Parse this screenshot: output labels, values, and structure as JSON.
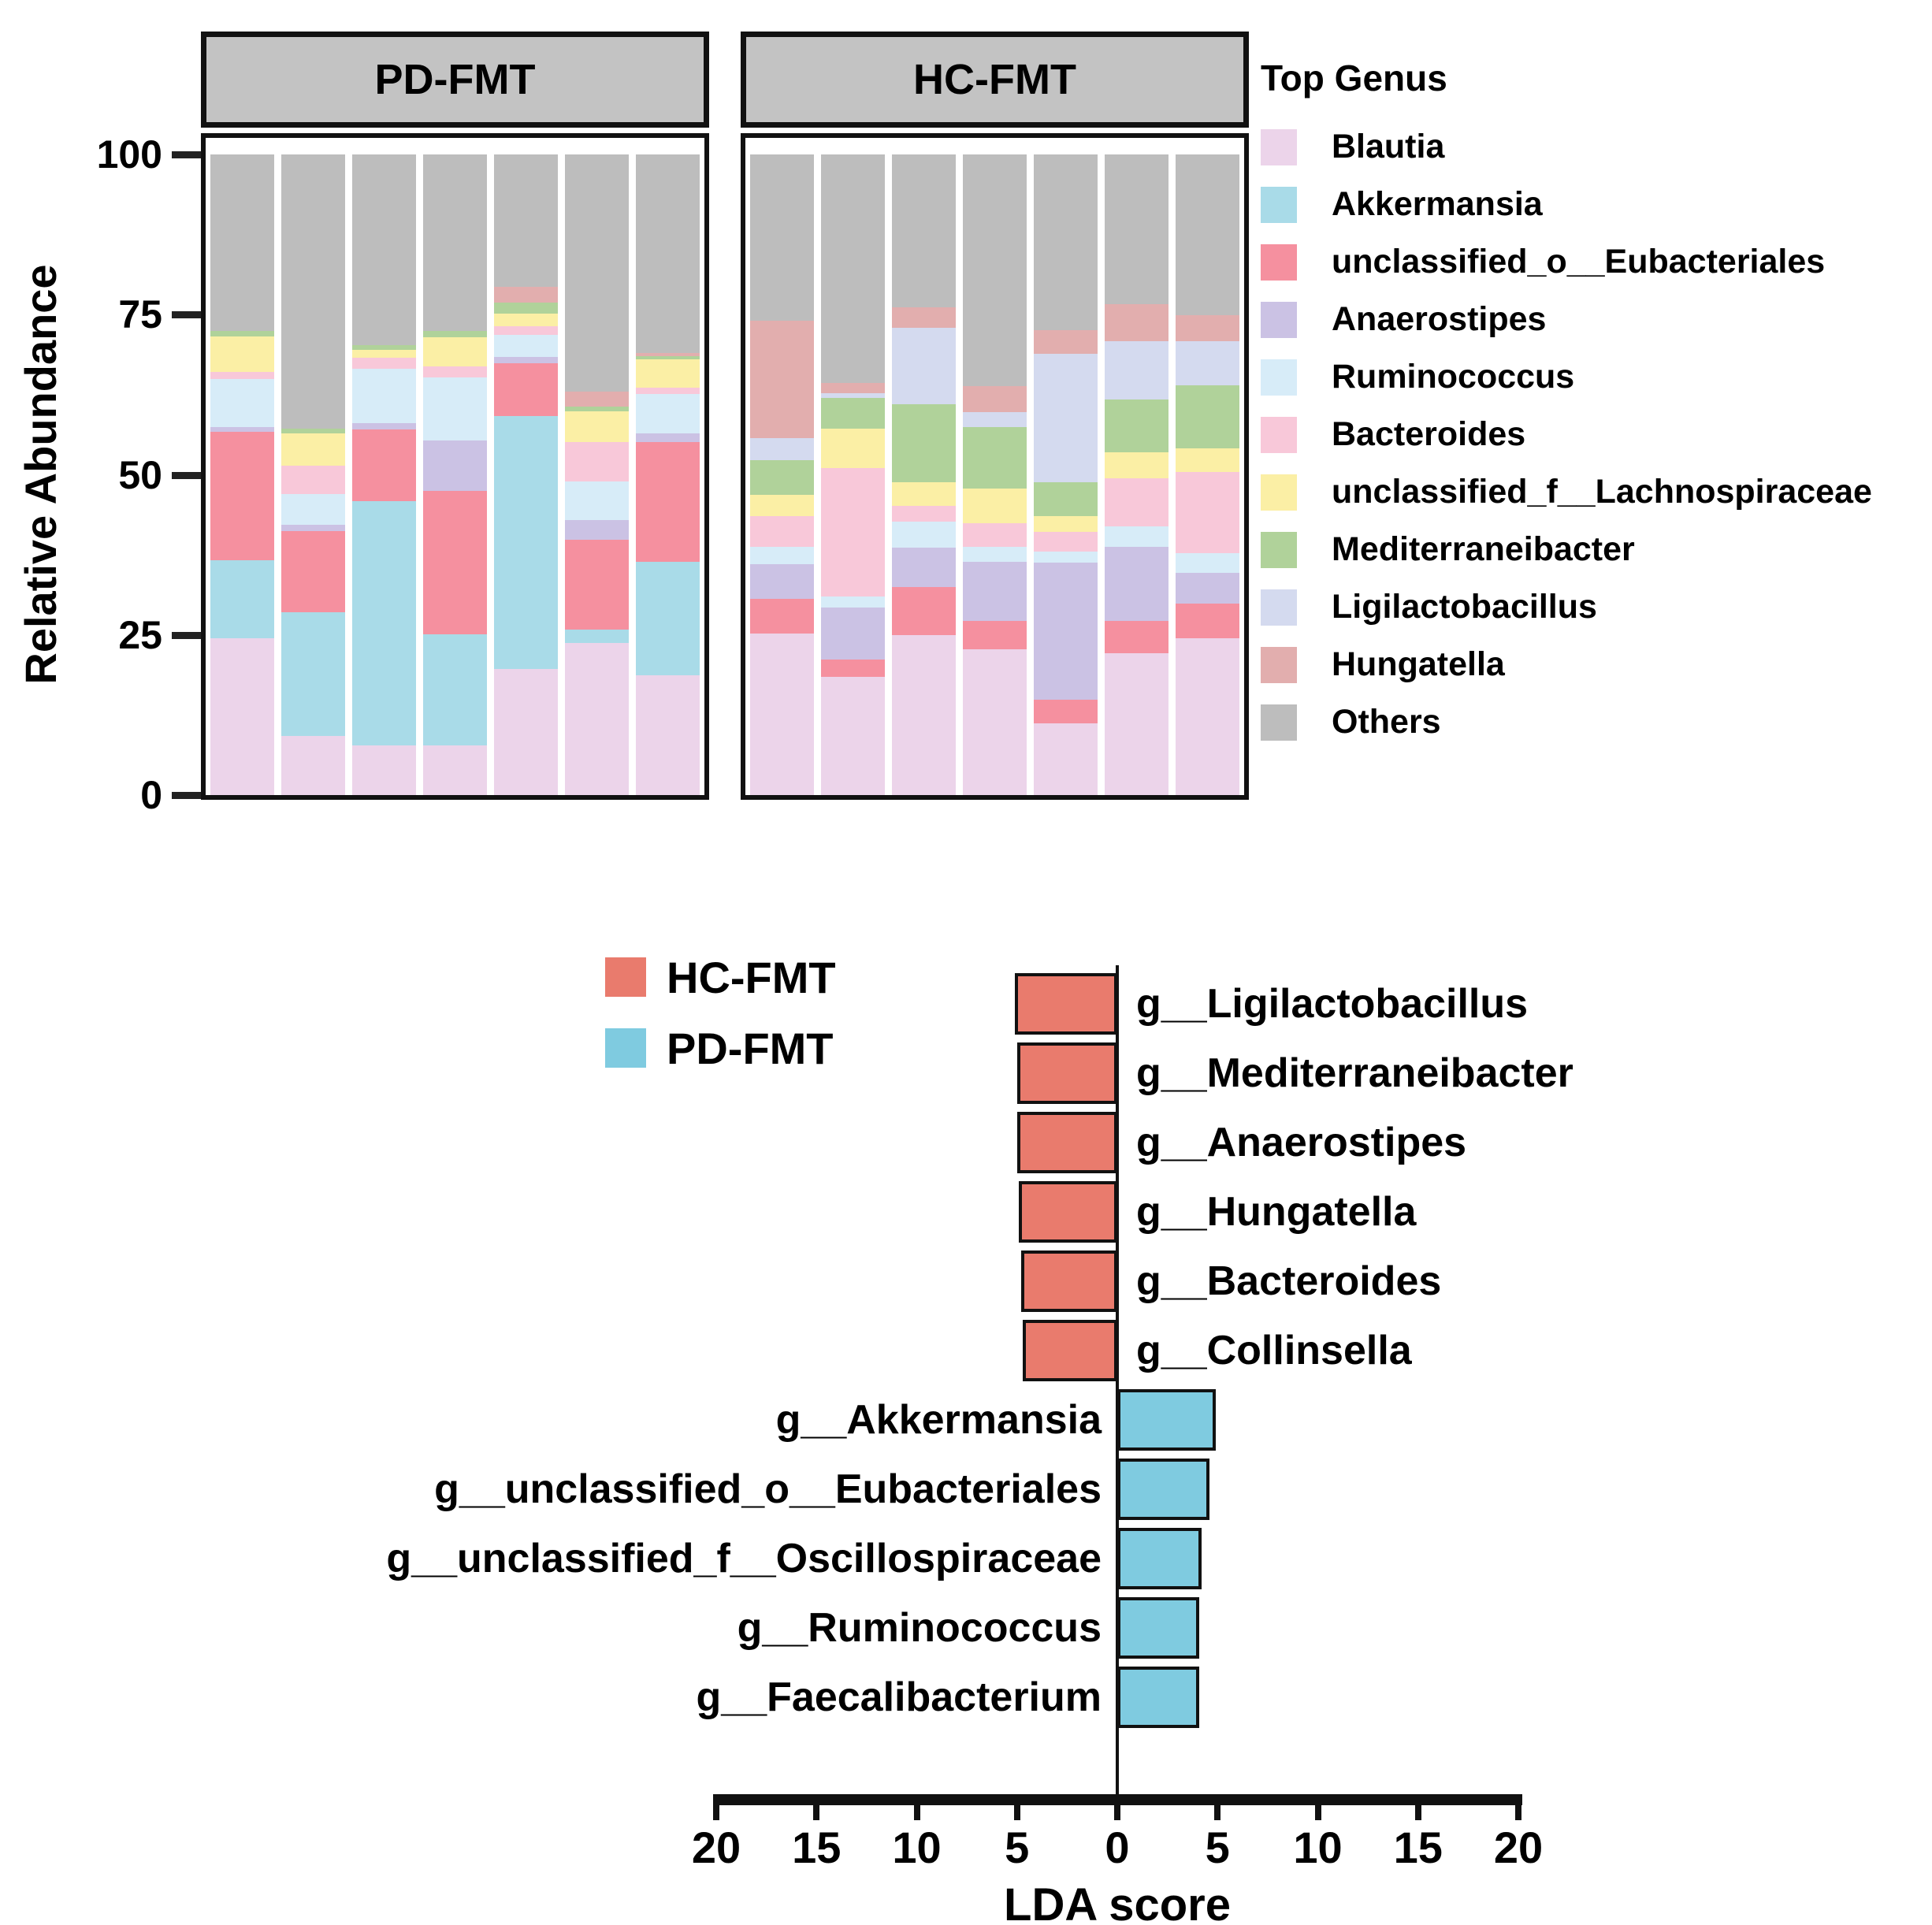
{
  "figure": {
    "y_axis_label": "Relative Abundance",
    "legend_title": "Top Genus",
    "lda_xlabel": "LDA score"
  },
  "chart_data": [
    {
      "type": "bar",
      "subtype": "stacked-percent",
      "ylabel": "Relative Abundance",
      "ylim": [
        0,
        100
      ],
      "yticks": [
        100,
        75,
        50,
        25,
        0
      ],
      "legend_title": "Top Genus",
      "legend_position": "right",
      "grid": false,
      "genera": [
        {
          "name": "Blautia",
          "color": "#ecd4ea"
        },
        {
          "name": "Akkermansia",
          "color": "#a9dbe8"
        },
        {
          "name": "unclassified_o__Eubacteriales",
          "color": "#f5909f"
        },
        {
          "name": "Anaerostipes",
          "color": "#cbc2e4"
        },
        {
          "name": "Ruminococcus",
          "color": "#d7ecf8"
        },
        {
          "name": "Bacteroides",
          "color": "#f8c8d9"
        },
        {
          "name": "unclassified_f__Lachnospiraceae",
          "color": "#fbefa5"
        },
        {
          "name": "Mediterraneibacter",
          "color": "#b0d29a"
        },
        {
          "name": "Ligilactobacillus",
          "color": "#d4daef"
        },
        {
          "name": "Hungatella",
          "color": "#e2aeae"
        },
        {
          "name": "Others",
          "color": "#bdbdbd"
        }
      ],
      "panels": [
        {
          "title": "PD-FMT",
          "bars": [
            [
              [
                "Blautia",
                24.5
              ],
              [
                "Akkermansia",
                12.2
              ],
              [
                "unclassified_o__Eubacteriales",
                20.0
              ],
              [
                "Anaerostipes",
                0.8
              ],
              [
                "Ruminococcus",
                7.5
              ],
              [
                "Bacteroides",
                1.0
              ],
              [
                "unclassified_f__Lachnospiraceae",
                5.6
              ],
              [
                "Mediterraneibacter",
                0.8
              ],
              [
                "Others",
                27.6
              ]
            ],
            [
              [
                "Blautia",
                9.2
              ],
              [
                "Akkermansia",
                19.4
              ],
              [
                "unclassified_o__Eubacteriales",
                12.6
              ],
              [
                "Anaerostipes",
                1.0
              ],
              [
                "Ruminococcus",
                4.8
              ],
              [
                "Bacteroides",
                4.4
              ],
              [
                "unclassified_f__Lachnospiraceae",
                5.1
              ],
              [
                "Mediterraneibacter",
                0.7
              ],
              [
                "Others",
                42.8
              ]
            ],
            [
              [
                "Blautia",
                7.8
              ],
              [
                "Akkermansia",
                38.1
              ],
              [
                "unclassified_o__Eubacteriales",
                11.2
              ],
              [
                "Anaerostipes",
                1.0
              ],
              [
                "Ruminococcus",
                8.5
              ],
              [
                "Bacteroides",
                1.7
              ],
              [
                "unclassified_f__Lachnospiraceae",
                1.2
              ],
              [
                "Mediterraneibacter",
                0.8
              ],
              [
                "Others",
                29.7
              ]
            ],
            [
              [
                "Blautia",
                7.8
              ],
              [
                "Akkermansia",
                17.3
              ],
              [
                "unclassified_o__Eubacteriales",
                22.4
              ],
              [
                "Anaerostipes",
                7.8
              ],
              [
                "Ruminococcus",
                9.9
              ],
              [
                "Bacteroides",
                1.7
              ],
              [
                "unclassified_f__Lachnospiraceae",
                4.6
              ],
              [
                "Mediterraneibacter",
                0.9
              ],
              [
                "Others",
                27.6
              ]
            ],
            [
              [
                "Blautia",
                19.7
              ],
              [
                "Akkermansia",
                39.5
              ],
              [
                "unclassified_o__Eubacteriales",
                8.2
              ],
              [
                "Anaerostipes",
                1.0
              ],
              [
                "Ruminococcus",
                3.4
              ],
              [
                "Bacteroides",
                1.4
              ],
              [
                "unclassified_f__Lachnospiraceae",
                2.0
              ],
              [
                "Mediterraneibacter",
                1.7
              ],
              [
                "Hungatella",
                2.4
              ],
              [
                "Others",
                20.7
              ]
            ],
            [
              [
                "Blautia",
                23.8
              ],
              [
                "Akkermansia",
                2.0
              ],
              [
                "unclassified_o__Eubacteriales",
                14.0
              ],
              [
                "Anaerostipes",
                3.1
              ],
              [
                "Ruminococcus",
                6.1
              ],
              [
                "Bacteroides",
                6.1
              ],
              [
                "unclassified_f__Lachnospiraceae",
                4.8
              ],
              [
                "Mediterraneibacter",
                0.7
              ],
              [
                "Hungatella",
                2.4
              ],
              [
                "Others",
                37.0
              ]
            ],
            [
              [
                "Blautia",
                18.7
              ],
              [
                "Akkermansia",
                17.7
              ],
              [
                "unclassified_o__Eubacteriales",
                18.7
              ],
              [
                "Anaerostipes",
                1.4
              ],
              [
                "Ruminococcus",
                6.1
              ],
              [
                "Bacteroides",
                1.0
              ],
              [
                "unclassified_f__Lachnospiraceae",
                4.4
              ],
              [
                "Mediterraneibacter",
                0.5
              ],
              [
                "Hungatella",
                0.5
              ],
              [
                "Others",
                31.0
              ]
            ]
          ]
        },
        {
          "title": "HC-FMT",
          "bars": [
            [
              [
                "Blautia",
                25.2
              ],
              [
                "unclassified_o__Eubacteriales",
                5.4
              ],
              [
                "Anaerostipes",
                5.4
              ],
              [
                "Ruminococcus",
                2.7
              ],
              [
                "Bacteroides",
                4.8
              ],
              [
                "unclassified_f__Lachnospiraceae",
                3.4
              ],
              [
                "Mediterraneibacter",
                5.4
              ],
              [
                "Ligilactobacillus",
                3.4
              ],
              [
                "Hungatella",
                18.4
              ],
              [
                "Others",
                25.9
              ]
            ],
            [
              [
                "Blautia",
                18.4
              ],
              [
                "unclassified_o__Eubacteriales",
                2.7
              ],
              [
                "Anaerostipes",
                8.2
              ],
              [
                "Ruminococcus",
                1.7
              ],
              [
                "Bacteroides",
                20.1
              ],
              [
                "unclassified_f__Lachnospiraceae",
                6.1
              ],
              [
                "Mediterraneibacter",
                4.8
              ],
              [
                "Ligilactobacillus",
                0.7
              ],
              [
                "Hungatella",
                1.7
              ],
              [
                "Others",
                35.6
              ]
            ],
            [
              [
                "Blautia",
                25.0
              ],
              [
                "unclassified_o__Eubacteriales",
                7.5
              ],
              [
                "Anaerostipes",
                6.1
              ],
              [
                "Ruminococcus",
                4.1
              ],
              [
                "Bacteroides",
                2.4
              ],
              [
                "unclassified_f__Lachnospiraceae",
                3.7
              ],
              [
                "Mediterraneibacter",
                12.2
              ],
              [
                "Ligilactobacillus",
                11.9
              ],
              [
                "Hungatella",
                3.3
              ],
              [
                "Others",
                23.8
              ]
            ],
            [
              [
                "Blautia",
                22.8
              ],
              [
                "unclassified_o__Eubacteriales",
                4.4
              ],
              [
                "Anaerostipes",
                9.2
              ],
              [
                "Ruminococcus",
                2.4
              ],
              [
                "Bacteroides",
                3.7
              ],
              [
                "unclassified_f__Lachnospiraceae",
                5.4
              ],
              [
                "Mediterraneibacter",
                9.5
              ],
              [
                "Ligilactobacillus",
                2.4
              ],
              [
                "Hungatella",
                4.1
              ],
              [
                "Others",
                36.1
              ]
            ],
            [
              [
                "Blautia",
                11.2
              ],
              [
                "unclassified_o__Eubacteriales",
                3.7
              ],
              [
                "Anaerostipes",
                21.4
              ],
              [
                "Ruminococcus",
                1.7
              ],
              [
                "Bacteroides",
                3.1
              ],
              [
                "unclassified_f__Lachnospiraceae",
                2.4
              ],
              [
                "Mediterraneibacter",
                5.4
              ],
              [
                "Ligilactobacillus",
                20.0
              ],
              [
                "Hungatella",
                3.7
              ],
              [
                "Others",
                27.4
              ]
            ],
            [
              [
                "Blautia",
                22.1
              ],
              [
                "unclassified_o__Eubacteriales",
                5.1
              ],
              [
                "Anaerostipes",
                11.6
              ],
              [
                "Ruminococcus",
                3.1
              ],
              [
                "Bacteroides",
                7.5
              ],
              [
                "unclassified_f__Lachnospiraceae",
                4.1
              ],
              [
                "Mediterraneibacter",
                8.2
              ],
              [
                "Ligilactobacillus",
                9.2
              ],
              [
                "Hungatella",
                5.8
              ],
              [
                "Others",
                23.3
              ]
            ],
            [
              [
                "Blautia",
                24.5
              ],
              [
                "unclassified_o__Eubacteriales",
                5.4
              ],
              [
                "Anaerostipes",
                4.8
              ],
              [
                "Ruminococcus",
                3.1
              ],
              [
                "Bacteroides",
                12.6
              ],
              [
                "unclassified_f__Lachnospiraceae",
                3.7
              ],
              [
                "Mediterraneibacter",
                9.9
              ],
              [
                "Ligilactobacillus",
                6.8
              ],
              [
                "Hungatella",
                4.1
              ],
              [
                "Others",
                25.1
              ]
            ]
          ]
        }
      ]
    },
    {
      "type": "bar",
      "subtype": "diverging-horizontal",
      "xlabel": "LDA score",
      "xlim": [
        -20,
        20
      ],
      "xticks": [
        {
          "label": "20",
          "value": -20
        },
        {
          "label": "15",
          "value": -15
        },
        {
          "label": "10",
          "value": -10
        },
        {
          "label": "5",
          "value": -5
        },
        {
          "label": "0",
          "value": 0
        },
        {
          "label": "5",
          "value": 5
        },
        {
          "label": "10",
          "value": 10
        },
        {
          "label": "15",
          "value": 15
        },
        {
          "label": "20",
          "value": 20
        }
      ],
      "legend": [
        {
          "name": "HC-FMT",
          "color": "#e97b6d"
        },
        {
          "name": "PD-FMT",
          "color": "#7fcbe0"
        }
      ],
      "rows": [
        {
          "label": "g__Ligilactobacillus",
          "group": "HC-FMT",
          "lda_score": 5.1
        },
        {
          "label": "g__Mediterraneibacter",
          "group": "HC-FMT",
          "lda_score": 5.0
        },
        {
          "label": "g__Anaerostipes",
          "group": "HC-FMT",
          "lda_score": 5.0
        },
        {
          "label": "g__Hungatella",
          "group": "HC-FMT",
          "lda_score": 4.9
        },
        {
          "label": "g__Bacteroides",
          "group": "HC-FMT",
          "lda_score": 4.8
        },
        {
          "label": "g__Collinsella",
          "group": "HC-FMT",
          "lda_score": 4.7
        },
        {
          "label": "g__Akkermansia",
          "group": "PD-FMT",
          "lda_score": 4.9
        },
        {
          "label": "g__unclassified_o__Eubacteriales",
          "group": "PD-FMT",
          "lda_score": 4.6
        },
        {
          "label": "g__unclassified_f__Oscillospiraceae",
          "group": "PD-FMT",
          "lda_score": 4.2
        },
        {
          "label": "g__Ruminococcus",
          "group": "PD-FMT",
          "lda_score": 4.1
        },
        {
          "label": "g__Faecalibacterium",
          "group": "PD-FMT",
          "lda_score": 4.1
        }
      ]
    }
  ]
}
